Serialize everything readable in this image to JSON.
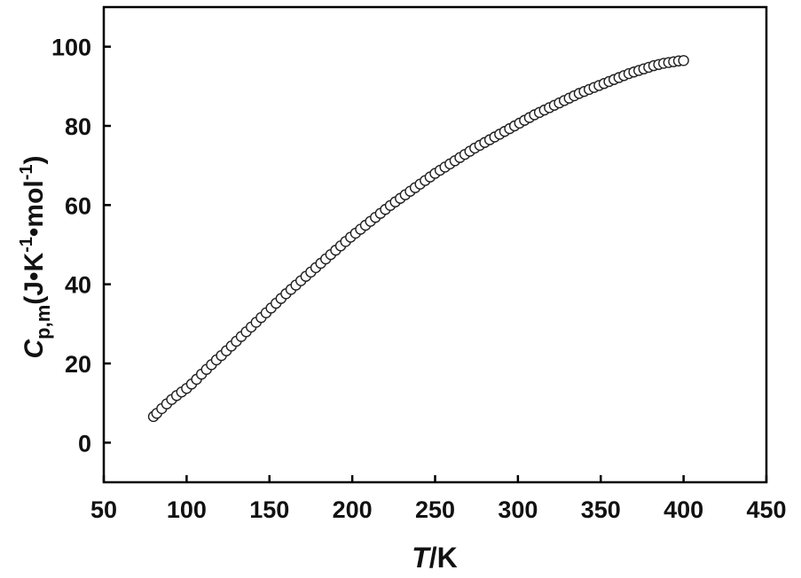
{
  "chart_data": {
    "type": "scatter",
    "xlabel": {
      "var": "T",
      "unit": "/K"
    },
    "ylabel": {
      "symbol": "C",
      "sub": "p,m",
      "text1": "(J•K",
      "sup1": "-1",
      "text2": "•mol",
      "sup2": "-1",
      "text3": ")"
    },
    "xlim": [
      50,
      450
    ],
    "ylim": [
      -10,
      110
    ],
    "xticks": [
      "50",
      "100",
      "150",
      "200",
      "250",
      "300",
      "350",
      "400",
      "450"
    ],
    "yticks": [
      "0",
      "20",
      "40",
      "60",
      "80",
      "100"
    ],
    "grid": false,
    "legend": "none",
    "marker": "open-circle",
    "series": [
      {
        "x": [
          80,
          82,
          85,
          88,
          91,
          94,
          97,
          100,
          103,
          106,
          109,
          112,
          115,
          118,
          121,
          124,
          127,
          130,
          133,
          136,
          139,
          142,
          145,
          148,
          151,
          154,
          157,
          160,
          163,
          166,
          169,
          172,
          175,
          178,
          181,
          184,
          187,
          190,
          193,
          196,
          199,
          202,
          205,
          208,
          211,
          214,
          217,
          220,
          223,
          226,
          229,
          232,
          235,
          238,
          241,
          244,
          247,
          250,
          253,
          256,
          259,
          262,
          265,
          268,
          271,
          274,
          277,
          280,
          283,
          286,
          289,
          292,
          295,
          298,
          301,
          304,
          307,
          310,
          313,
          316,
          319,
          322,
          325,
          328,
          331,
          334,
          337,
          340,
          343,
          346,
          349,
          352,
          355,
          358,
          361,
          364,
          367,
          370,
          373,
          376,
          379,
          382,
          385,
          388,
          391,
          394,
          397,
          400
        ],
        "y": [
          6.6,
          7.4,
          8.6,
          9.8,
          10.9,
          11.9,
          12.8,
          13.7,
          14.8,
          16.0,
          17.3,
          18.5,
          19.7,
          20.9,
          22.0,
          23.2,
          24.4,
          25.6,
          26.8,
          28.0,
          29.2,
          30.4,
          31.6,
          32.8,
          34.0,
          35.2,
          36.4,
          37.6,
          38.7,
          39.8,
          40.9,
          42.0,
          43.1,
          44.2,
          45.3,
          46.4,
          47.5,
          48.6,
          49.7,
          50.8,
          51.9,
          52.9,
          53.9,
          54.9,
          55.9,
          56.9,
          57.9,
          58.9,
          59.9,
          60.8,
          61.7,
          62.6,
          63.5,
          64.4,
          65.3,
          66.2,
          67.1,
          68.0,
          68.8,
          69.6,
          70.4,
          71.2,
          72.0,
          72.8,
          73.6,
          74.4,
          75.1,
          75.8,
          76.5,
          77.2,
          77.9,
          78.6,
          79.3,
          80.0,
          80.7,
          81.4,
          82.1,
          82.8,
          83.4,
          84.0,
          84.6,
          85.2,
          85.8,
          86.4,
          87.0,
          87.6,
          88.2,
          88.7,
          89.2,
          89.7,
          90.2,
          90.7,
          91.2,
          91.7,
          92.2,
          92.7,
          93.2,
          93.6,
          94.0,
          94.4,
          94.8,
          95.2,
          95.5,
          95.8,
          96.0,
          96.2,
          96.4,
          96.5
        ]
      }
    ]
  }
}
